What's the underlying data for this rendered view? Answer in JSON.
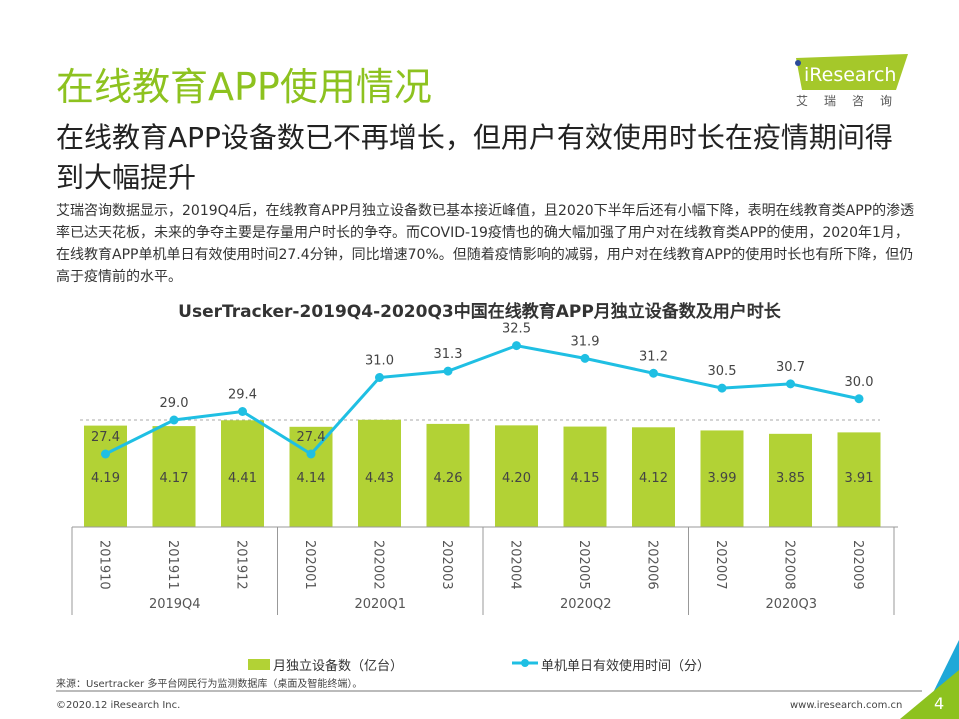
{
  "page": {
    "title": "在线教育APP使用情况",
    "subtitle": "在线教育APP设备数已不再增长，但用户有效使用时长在疫情期间得到大幅提升",
    "description": "艾瑞咨询数据显示，2019Q4后，在线教育APP月独立设备数已基本接近峰值，且2020下半年后还有小幅下降，表明在线教育类APP的渗透率已达天花板，未来的争夺主要是存量用户时长的争夺。而COVID-19疫情也的确大幅加强了用户对在线教育类APP的使用，2020年1月，在线教育APP单机单日有效使用时间27.4分钟，同比增速70%。但随着疫情影响的减弱，用户对在线教育APP的使用时长也有所下降，但仍高于疫情前的水平。",
    "logo_text": "iResearch",
    "logo_cn": "艾瑞咨询",
    "source": "来源：Usertracker 多平台网民行为监测数据库（桌面及智能终端）。",
    "copyright": "©2020.12 iResearch Inc.",
    "website": "www.iresearch.com.cn",
    "page_number": "4"
  },
  "colors": {
    "title": "#8dc21f",
    "bar": "#b2d235",
    "line": "#1fbfe3"
  },
  "chart_data": {
    "type": "bar+line",
    "title": "UserTracker-2019Q4-2020Q3中国在线教育APP月独立设备数及用户时长",
    "categories": [
      "201910",
      "201911",
      "201912",
      "202001",
      "202002",
      "202003",
      "202004",
      "202005",
      "202006",
      "202007",
      "202008",
      "202009"
    ],
    "groups": [
      {
        "label": "2019Q4",
        "span": 3
      },
      {
        "label": "2020Q1",
        "span": 3
      },
      {
        "label": "2020Q2",
        "span": 3
      },
      {
        "label": "2020Q3",
        "span": 3
      }
    ],
    "series": [
      {
        "name": "月独立设备数（亿台）",
        "type": "bar",
        "values": [
          4.19,
          4.17,
          4.41,
          4.14,
          4.43,
          4.26,
          4.2,
          4.15,
          4.12,
          3.99,
          3.85,
          3.91
        ]
      },
      {
        "name": "单机单日有效使用时间（分）",
        "type": "line",
        "values": [
          27.4,
          29.0,
          29.4,
          27.4,
          31.0,
          31.3,
          32.5,
          31.9,
          31.2,
          30.5,
          30.7,
          30.0
        ]
      }
    ],
    "legend": "bottom"
  }
}
